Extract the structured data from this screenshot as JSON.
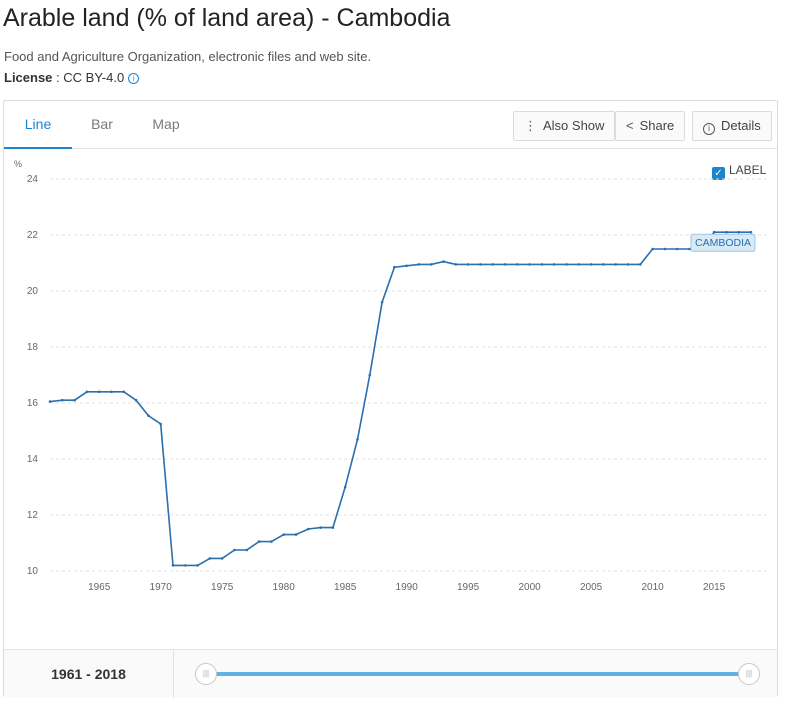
{
  "header": {
    "title": "Arable land (% of land area) - Cambodia",
    "source": "Food and Agriculture Organization, electronic files and web site.",
    "license_label": "License",
    "license_value": " : CC BY-4.0"
  },
  "tabs": [
    {
      "label": "Line",
      "active": true
    },
    {
      "label": "Bar",
      "active": false
    },
    {
      "label": "Map",
      "active": false
    }
  ],
  "toolbar": {
    "also_show": "Also Show",
    "share": "Share",
    "details": "Details"
  },
  "label_toggle": {
    "label": "LABEL",
    "checked": true
  },
  "footer": {
    "range": "1961 - 2018"
  },
  "colors": {
    "line": "#2a6fae",
    "accent": "#1a86d0",
    "slider": "#5fb3e3"
  },
  "chart_data": {
    "type": "line",
    "title": "",
    "xlabel": "",
    "ylabel": "%",
    "ylim": [
      10,
      24
    ],
    "xlim": [
      1961,
      2018
    ],
    "yticks": [
      10,
      12,
      14,
      16,
      18,
      20,
      22,
      24
    ],
    "xticks": [
      1965,
      1970,
      1975,
      1980,
      1985,
      1990,
      1995,
      2000,
      2005,
      2010,
      2015
    ],
    "grid": true,
    "series": [
      {
        "name": "CAMBODIA",
        "x": [
          1961,
          1962,
          1963,
          1964,
          1965,
          1966,
          1967,
          1968,
          1969,
          1970,
          1971,
          1972,
          1973,
          1974,
          1975,
          1976,
          1977,
          1978,
          1979,
          1980,
          1981,
          1982,
          1983,
          1984,
          1985,
          1986,
          1987,
          1988,
          1989,
          1990,
          1991,
          1992,
          1993,
          1994,
          1995,
          1996,
          1997,
          1998,
          1999,
          2000,
          2001,
          2002,
          2003,
          2004,
          2005,
          2006,
          2007,
          2008,
          2009,
          2010,
          2011,
          2012,
          2013,
          2014,
          2015,
          2016,
          2017,
          2018
        ],
        "values": [
          16.05,
          16.1,
          16.1,
          16.4,
          16.4,
          16.4,
          16.4,
          16.1,
          15.55,
          15.25,
          10.2,
          10.2,
          10.2,
          10.45,
          10.45,
          10.75,
          10.75,
          11.05,
          11.05,
          11.3,
          11.3,
          11.5,
          11.55,
          11.55,
          13.0,
          14.7,
          17.0,
          19.6,
          20.85,
          20.9,
          20.95,
          20.95,
          21.05,
          20.95,
          20.95,
          20.95,
          20.95,
          20.95,
          20.95,
          20.95,
          20.95,
          20.95,
          20.95,
          20.95,
          20.95,
          20.95,
          20.95,
          20.95,
          20.95,
          21.5,
          21.5,
          21.5,
          21.5,
          21.5,
          22.1,
          22.1,
          22.1,
          22.1
        ]
      }
    ]
  }
}
